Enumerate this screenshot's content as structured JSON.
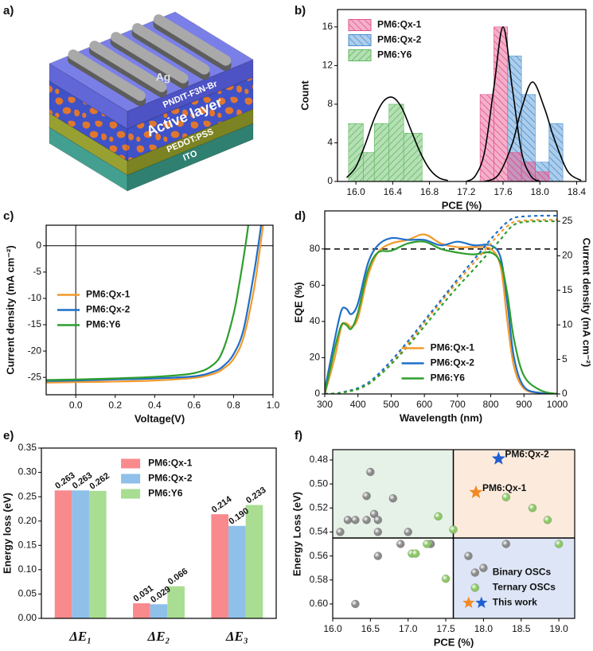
{
  "panel_labels": [
    "a)",
    "b)",
    "c)",
    "d)",
    "e)",
    "f)"
  ],
  "device": {
    "layers": [
      "Ag",
      "PNDIT-F3N-Br",
      "Active layer",
      "PEDOT:PSS",
      "ITO"
    ]
  },
  "chart_data": [
    {
      "type": "histogram",
      "x_label": "PCE (%)",
      "y_label": "Count",
      "xlim": [
        15.8,
        18.5
      ],
      "xticks": [
        {
          "value": 16,
          "label": "16.0"
        },
        16.4,
        16.8,
        17.2,
        17.6,
        {
          "value": 18,
          "label": "18.0"
        },
        18.4
      ],
      "ylim": [
        0,
        17.8
      ],
      "yticks": [
        0,
        4,
        8,
        12,
        16
      ],
      "legend": "upper left",
      "fit_color": "#000000",
      "series": [
        {
          "name": "PM6:Qx-1",
          "color": "#e4508a",
          "hatch": "\\",
          "bins": [
            17.35,
            17.5,
            17.65,
            17.8,
            17.95,
            18.1
          ],
          "counts": [
            9,
            16,
            3,
            2,
            1
          ],
          "fit_x": [
            17.2,
            17.3,
            17.4,
            17.5,
            17.6,
            17.7,
            17.8,
            17.9,
            18.0
          ],
          "fit_y": [
            0,
            0.6,
            3.1,
            9.7,
            16,
            9.7,
            3.1,
            0.6,
            0
          ]
        },
        {
          "name": "PM6:Qx-2",
          "color": "#4a90d0",
          "hatch": "\\",
          "bins": [
            17.65,
            17.8,
            17.95,
            18.1,
            18.25
          ],
          "counts": [
            13,
            9,
            2,
            6
          ],
          "fit_x": [
            17.4,
            17.55,
            17.7,
            17.8,
            17.92,
            18.05,
            18.15,
            18.3,
            18.45
          ],
          "fit_y": [
            0,
            0.7,
            3.9,
            7.5,
            10.3,
            7.6,
            4.6,
            1.1,
            0.1
          ]
        },
        {
          "name": "PM6:Y6",
          "color": "#5cb85c",
          "hatch": "/",
          "bins": [
            15.92,
            16.08,
            16.2,
            16.36,
            16.52,
            16.72
          ],
          "counts": [
            6,
            3,
            6,
            8,
            5
          ],
          "fit_x": [
            15.9,
            16.0,
            16.1,
            16.2,
            16.3,
            16.4,
            16.5,
            16.6,
            16.7,
            16.8,
            16.9,
            17.0
          ],
          "fit_y": [
            0.4,
            1.5,
            3.8,
            6.5,
            8.3,
            8.7,
            7.6,
            5.3,
            3.0,
            1.3,
            0.4,
            0.1
          ]
        }
      ]
    },
    {
      "type": "line",
      "x_label": "Voltage(V)",
      "y_label": "Current density (mA cm⁻²)",
      "xlim": [
        -0.15,
        1.0
      ],
      "xticks": [
        {
          "value": 0,
          "label": "0.0"
        },
        0.2,
        0.4,
        0.6,
        0.8,
        {
          "value": 1,
          "label": "1.0"
        }
      ],
      "ylim": [
        -28.3,
        3.9
      ],
      "yticks": [
        -25,
        -20,
        -15,
        -10,
        -5,
        0
      ],
      "origin_lines": true,
      "legend": "center left",
      "series": [
        {
          "name": "PM6:Qx-1",
          "color": "#f39a2d",
          "x": [
            -0.15,
            0,
            0.2,
            0.4,
            0.6,
            0.7,
            0.75,
            0.8,
            0.85,
            0.9,
            0.93,
            0.95
          ],
          "values": [
            -26.0,
            -25.9,
            -25.8,
            -25.6,
            -25.1,
            -24.3,
            -23.3,
            -21.5,
            -17.5,
            -9.0,
            -1.5,
            4.0
          ]
        },
        {
          "name": "PM6:Qx-2",
          "color": "#1f6fc8",
          "x": [
            -0.15,
            0,
            0.2,
            0.4,
            0.6,
            0.7,
            0.75,
            0.8,
            0.85,
            0.9,
            0.925,
            0.94
          ],
          "values": [
            -25.7,
            -25.6,
            -25.4,
            -25.2,
            -24.8,
            -23.9,
            -22.8,
            -20.6,
            -16.0,
            -6.0,
            0.0,
            4.0
          ]
        },
        {
          "name": "PM6:Y6",
          "color": "#2e9e2e",
          "x": [
            -0.15,
            0,
            0.2,
            0.4,
            0.6,
            0.7,
            0.75,
            0.8,
            0.83,
            0.86,
            0.875
          ],
          "values": [
            -25.5,
            -25.4,
            -25.2,
            -24.9,
            -24.2,
            -22.5,
            -19.5,
            -13.0,
            -7.0,
            0.0,
            4.0
          ]
        }
      ]
    },
    {
      "type": "line",
      "x_label": "Wavelength (nm)",
      "y_label": "EQE (%)",
      "y2_label": "Current density (mA cm⁻²)",
      "xlim": [
        300,
        1000
      ],
      "xticks": [
        300,
        400,
        500,
        600,
        700,
        800,
        900,
        1000
      ],
      "ylim": [
        0,
        101
      ],
      "yticks": [
        0,
        20,
        40,
        60,
        80
      ],
      "y2lim": [
        0,
        26.5
      ],
      "y2ticks": [
        0,
        5,
        10,
        15,
        20,
        25
      ],
      "hline": 80,
      "legend": "lower center",
      "x": [
        300,
        330,
        350,
        365,
        380,
        400,
        430,
        460,
        500,
        550,
        600,
        650,
        700,
        750,
        800,
        830,
        850,
        870,
        900,
        950,
        1000
      ],
      "series": [
        {
          "name": "PM6:Qx-1",
          "color": "#f39a2d",
          "values": [
            0,
            20,
            37,
            39,
            37,
            42,
            65,
            78,
            83,
            85,
            88,
            83,
            81,
            81,
            80,
            70,
            40,
            15,
            3,
            0.5,
            0
          ]
        },
        {
          "name": "PM6:Qx-2",
          "color": "#1f6fc8",
          "values": [
            2,
            30,
            46,
            47,
            44,
            50,
            72,
            82,
            86,
            85,
            85,
            82,
            84,
            82,
            82,
            75,
            50,
            20,
            4,
            0.5,
            0
          ]
        },
        {
          "name": "PM6:Y6",
          "color": "#2e9e2e",
          "values": [
            0,
            25,
            38,
            38,
            36,
            45,
            68,
            78,
            79,
            83,
            84,
            80,
            78,
            77,
            78,
            72,
            55,
            30,
            10,
            2,
            0
          ]
        },
        {
          "color": "#f39a2d",
          "axis": "y2",
          "linestyle": "dashed",
          "values": [
            0,
            0.05,
            0.15,
            0.3,
            0.45,
            0.7,
            1.4,
            2.5,
            4.4,
            7.2,
            10.3,
            13.3,
            16.2,
            19.0,
            21.8,
            23.4,
            24.3,
            24.9,
            25.1,
            25.2,
            25.2
          ]
        },
        {
          "color": "#1f6fc8",
          "axis": "y2",
          "linestyle": "dashed",
          "values": [
            0,
            0.07,
            0.2,
            0.38,
            0.55,
            0.85,
            1.6,
            2.8,
            4.8,
            7.6,
            10.6,
            13.6,
            16.6,
            19.5,
            22.4,
            24.0,
            24.9,
            25.5,
            25.7,
            25.8,
            25.8
          ]
        },
        {
          "color": "#2e9e2e",
          "axis": "y2",
          "linestyle": "dashed",
          "values": [
            0,
            0.06,
            0.16,
            0.3,
            0.45,
            0.7,
            1.4,
            2.5,
            4.3,
            6.9,
            9.8,
            12.7,
            15.5,
            18.1,
            20.8,
            22.4,
            23.6,
            24.5,
            24.9,
            25.0,
            25.0
          ]
        }
      ]
    },
    {
      "type": "grouped_bar",
      "y_label": "Energy loss (eV)",
      "categories": [
        "ΔE₁",
        "ΔE₂",
        "ΔE₃"
      ],
      "ylim": [
        0,
        0.35
      ],
      "yticks": [
        {
          "value": 0,
          "label": "0.00"
        },
        0.05,
        {
          "value": 0.1,
          "label": "0.10"
        },
        0.15,
        {
          "value": 0.2,
          "label": "0.20"
        },
        0.25,
        {
          "value": 0.3,
          "label": "0.30"
        },
        0.35
      ],
      "legend": "upper center",
      "series": [
        {
          "name": "PM6:Qx-1",
          "color": "#f88a8e",
          "values": [
            0.263,
            0.031,
            0.214
          ],
          "value_labels": [
            "0.263",
            "0.031",
            "0.214"
          ]
        },
        {
          "name": "PM6:Qx-2",
          "color": "#8ec0ea",
          "values": [
            0.263,
            0.029,
            0.19
          ],
          "value_labels": [
            "0.263",
            "0.029",
            "0.190"
          ]
        },
        {
          "name": "PM6:Y6",
          "color": "#a8dd92",
          "values": [
            0.262,
            0.066,
            0.233
          ],
          "value_labels": [
            "0.262",
            "0.066",
            "0.233"
          ]
        }
      ]
    },
    {
      "type": "scatter",
      "x_label": "PCE (%)",
      "y_label": "Energy Loss (eV)",
      "xlim": [
        16.0,
        19.21
      ],
      "xticks": [
        {
          "value": 16,
          "label": "16.0"
        },
        16.5,
        {
          "value": 17,
          "label": "17.0"
        },
        17.5,
        {
          "value": 18,
          "label": "18.0"
        },
        18.5,
        {
          "value": 19,
          "label": "19.0"
        }
      ],
      "ylim": [
        0.4714,
        0.612
      ],
      "y_inverted": true,
      "yticks": [
        0.48,
        {
          "value": 0.5,
          "label": "0.50"
        },
        0.52,
        0.54,
        0.56,
        0.58,
        {
          "value": 0.6,
          "label": "0.60"
        }
      ],
      "divider_x": 17.6,
      "divider_y": 0.545,
      "quadrant_colors": {
        "upper_left": "#e6f2e7",
        "upper_right": "#fcebdd",
        "lower_right": "#dde5f6"
      },
      "legend": "lower right",
      "series": [
        {
          "name": "Binary OSCs",
          "color": "#8a8a8a",
          "marker": "circle",
          "x": [
            16.1,
            16.2,
            16.3,
            16.45,
            16.45,
            16.5,
            16.55,
            16.6,
            16.6,
            16.8,
            17.0,
            16.3,
            16.6,
            16.9,
            17.3,
            17.8,
            18.0,
            18.3
          ],
          "values": [
            0.54,
            0.53,
            0.53,
            0.53,
            0.51,
            0.49,
            0.525,
            0.54,
            0.53,
            0.512,
            0.54,
            0.6,
            0.56,
            0.55,
            0.55,
            0.56,
            0.57,
            0.55
          ]
        },
        {
          "name": "Ternary OSCs",
          "color": "#8cc866",
          "marker": "circle",
          "x": [
            17.4,
            17.6,
            17.05,
            17.1,
            17.25,
            17.5,
            18.3,
            18.65,
            18.85,
            19.0
          ],
          "values": [
            0.527,
            0.538,
            0.558,
            0.558,
            0.55,
            0.579,
            0.511,
            0.52,
            0.53,
            0.55
          ]
        },
        {
          "name": "This work",
          "marker": "star",
          "colors": [
            "#f08a24",
            "#1f5fd1"
          ],
          "x": [
            17.9,
            18.2
          ],
          "values": [
            0.507,
            0.479
          ],
          "point_labels": [
            "PM6:Qx-1",
            "PM6:Qx-2"
          ]
        }
      ]
    }
  ]
}
